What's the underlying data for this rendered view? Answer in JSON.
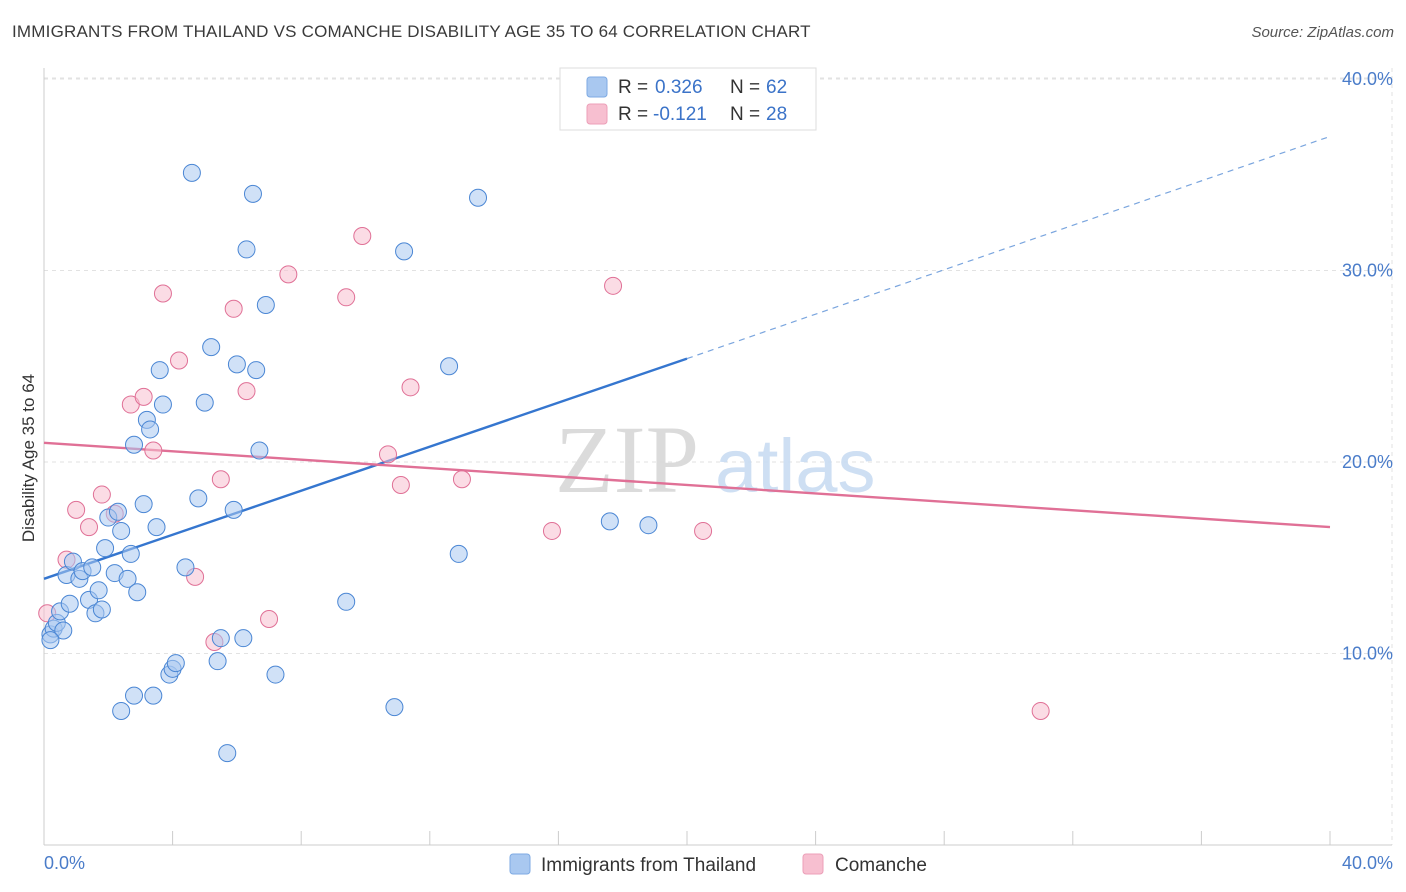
{
  "title": "IMMIGRANTS FROM THAILAND VS COMANCHE DISABILITY AGE 35 TO 64 CORRELATION CHART",
  "source": "Source: ZipAtlas.com",
  "watermark": {
    "zip": "ZIP",
    "atlas": "atlas"
  },
  "legend": {
    "r_label": "R =",
    "n_label": "N =",
    "rows": [
      {
        "r": "0.326",
        "n": "62",
        "color": "#a9c8f0"
      },
      {
        "r": "-0.121",
        "n": "28",
        "color": "#f7bfd0"
      }
    ]
  },
  "chart_data": {
    "type": "scatter",
    "title": "IMMIGRANTS FROM THAILAND VS COMANCHE DISABILITY AGE 35 TO 64 CORRELATION CHART",
    "xlabel": "",
    "ylabel": "Disability Age 35 to 64",
    "xlim": [
      0,
      40
    ],
    "ylim": [
      0,
      42
    ],
    "x_tick_labels": [
      "0.0%",
      "40.0%"
    ],
    "y_ticks": [
      10,
      20,
      30,
      40
    ],
    "y_tick_labels": [
      "10.0%",
      "20.0%",
      "30.0%",
      "40.0%"
    ],
    "grid": true,
    "legend_position": "top-center",
    "series": [
      {
        "name": "Immigrants from Thailand",
        "color": "#4a86d4",
        "fill": "#a9c8f0",
        "points": [
          [
            0.2,
            11.0
          ],
          [
            0.3,
            11.3
          ],
          [
            0.4,
            11.6
          ],
          [
            0.5,
            12.2
          ],
          [
            0.6,
            11.2
          ],
          [
            0.7,
            14.1
          ],
          [
            0.8,
            12.6
          ],
          [
            0.9,
            14.8
          ],
          [
            1.1,
            13.9
          ],
          [
            1.2,
            14.3
          ],
          [
            1.4,
            12.8
          ],
          [
            1.5,
            14.5
          ],
          [
            1.6,
            12.1
          ],
          [
            1.7,
            13.3
          ],
          [
            1.8,
            12.3
          ],
          [
            1.9,
            15.5
          ],
          [
            2.0,
            17.1
          ],
          [
            2.2,
            14.2
          ],
          [
            2.3,
            17.4
          ],
          [
            2.4,
            16.4
          ],
          [
            2.6,
            13.9
          ],
          [
            2.7,
            15.2
          ],
          [
            2.8,
            20.9
          ],
          [
            2.9,
            13.2
          ],
          [
            3.1,
            17.8
          ],
          [
            3.2,
            22.2
          ],
          [
            3.3,
            21.7
          ],
          [
            3.5,
            16.6
          ],
          [
            3.6,
            24.8
          ],
          [
            3.7,
            23.0
          ],
          [
            3.9,
            8.9
          ],
          [
            4.0,
            9.2
          ],
          [
            4.1,
            9.5
          ],
          [
            4.4,
            14.5
          ],
          [
            4.6,
            35.1
          ],
          [
            4.8,
            18.1
          ],
          [
            5.0,
            23.1
          ],
          [
            5.2,
            26.0
          ],
          [
            5.4,
            9.6
          ],
          [
            5.5,
            10.8
          ],
          [
            5.7,
            4.8
          ],
          [
            5.9,
            17.5
          ],
          [
            6.0,
            25.1
          ],
          [
            6.2,
            10.8
          ],
          [
            6.3,
            31.1
          ],
          [
            6.5,
            34.0
          ],
          [
            6.6,
            24.8
          ],
          [
            6.7,
            20.6
          ],
          [
            6.9,
            28.2
          ],
          [
            7.2,
            8.9
          ],
          [
            2.4,
            7.0
          ],
          [
            2.8,
            7.8
          ],
          [
            3.4,
            7.8
          ],
          [
            9.4,
            12.7
          ],
          [
            10.9,
            7.2
          ],
          [
            11.2,
            31.0
          ],
          [
            12.6,
            25.0
          ],
          [
            12.9,
            15.2
          ],
          [
            13.5,
            33.8
          ],
          [
            17.6,
            16.9
          ],
          [
            18.8,
            16.7
          ],
          [
            0.2,
            10.7
          ]
        ]
      },
      {
        "name": "Comanche",
        "color": "#e07096",
        "fill": "#f7bfd0",
        "points": [
          [
            0.1,
            12.1
          ],
          [
            0.7,
            14.9
          ],
          [
            1.0,
            17.5
          ],
          [
            1.4,
            16.6
          ],
          [
            1.8,
            18.3
          ],
          [
            2.2,
            17.3
          ],
          [
            2.7,
            23.0
          ],
          [
            3.1,
            23.4
          ],
          [
            3.4,
            20.6
          ],
          [
            3.7,
            28.8
          ],
          [
            4.2,
            25.3
          ],
          [
            4.7,
            14.0
          ],
          [
            5.3,
            10.6
          ],
          [
            5.5,
            19.1
          ],
          [
            5.9,
            28.0
          ],
          [
            6.3,
            23.7
          ],
          [
            7.0,
            11.8
          ],
          [
            7.6,
            29.8
          ],
          [
            9.4,
            28.6
          ],
          [
            9.9,
            31.8
          ],
          [
            10.7,
            20.4
          ],
          [
            11.1,
            18.8
          ],
          [
            11.4,
            23.9
          ],
          [
            13.0,
            19.1
          ],
          [
            15.8,
            16.4
          ],
          [
            17.7,
            29.2
          ],
          [
            20.5,
            16.4
          ],
          [
            31.0,
            7.0
          ]
        ]
      }
    ],
    "trend_lines": [
      {
        "series": "Immigrants from Thailand",
        "x": [
          0,
          20
        ],
        "y": [
          13.9,
          25.4
        ],
        "extended_to": [
          40,
          37.0
        ]
      },
      {
        "series": "Comanche",
        "x": [
          0,
          40
        ],
        "y": [
          21.0,
          16.6
        ]
      }
    ]
  },
  "bottom_legend": [
    {
      "label": "Immigrants from Thailand",
      "color": "#a9c8f0"
    },
    {
      "label": "Comanche",
      "color": "#f7bfd0"
    }
  ]
}
